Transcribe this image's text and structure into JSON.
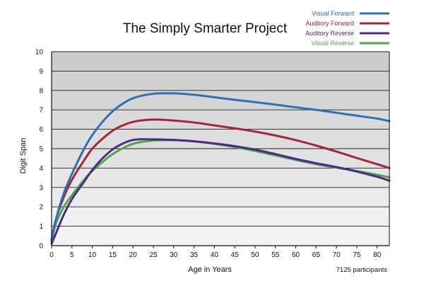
{
  "chart_data": {
    "type": "line",
    "title": "The Simply Smarter Project",
    "xlabel": "Age in Years",
    "ylabel": "Digit Span",
    "note": "7125 participants",
    "xlim": [
      0,
      83
    ],
    "ylim": [
      0,
      10
    ],
    "x_ticks": [
      0,
      5,
      10,
      15,
      20,
      25,
      30,
      35,
      40,
      45,
      50,
      55,
      60,
      65,
      70,
      75,
      80
    ],
    "y_ticks": [
      0,
      1,
      2,
      3,
      4,
      5,
      6,
      7,
      8,
      9,
      10
    ],
    "grid": true,
    "legend_position": "top-right",
    "series": [
      {
        "name": "Visual Forward",
        "color": "#2e6fb5",
        "x": [
          0,
          1,
          3,
          5,
          8,
          10,
          13,
          16,
          20,
          25,
          30,
          35,
          40,
          45,
          50,
          55,
          60,
          65,
          70,
          75,
          80,
          83
        ],
        "values": [
          0.2,
          1.3,
          2.7,
          3.7,
          5.0,
          5.7,
          6.5,
          7.1,
          7.6,
          7.83,
          7.85,
          7.78,
          7.65,
          7.52,
          7.4,
          7.27,
          7.13,
          7.0,
          6.85,
          6.7,
          6.55,
          6.42
        ]
      },
      {
        "name": "Auditory Forward",
        "color": "#a8243a",
        "x": [
          0,
          1,
          3,
          5,
          8,
          10,
          13,
          16,
          20,
          25,
          30,
          35,
          40,
          45,
          50,
          55,
          60,
          65,
          70,
          75,
          80,
          83
        ],
        "values": [
          0.3,
          1.3,
          2.5,
          3.4,
          4.4,
          5.0,
          5.6,
          6.05,
          6.38,
          6.5,
          6.45,
          6.35,
          6.2,
          6.05,
          5.88,
          5.68,
          5.44,
          5.16,
          4.85,
          4.52,
          4.2,
          4.0
        ]
      },
      {
        "name": "Auditory Reverse",
        "color": "#4b2a88",
        "x": [
          0,
          1,
          3,
          5,
          8,
          10,
          13,
          16,
          20,
          25,
          30,
          35,
          40,
          45,
          50,
          55,
          60,
          65,
          70,
          75,
          80,
          83
        ],
        "values": [
          0.1,
          0.6,
          1.6,
          2.4,
          3.3,
          3.9,
          4.6,
          5.1,
          5.45,
          5.48,
          5.45,
          5.38,
          5.27,
          5.13,
          4.95,
          4.72,
          4.47,
          4.25,
          4.05,
          3.82,
          3.55,
          3.35
        ]
      },
      {
        "name": "Visual Reverse",
        "color": "#4ea84a",
        "x": [
          0,
          1,
          3,
          5,
          8,
          10,
          13,
          16,
          20,
          25,
          30,
          35,
          40,
          45,
          50,
          55,
          60,
          65,
          70,
          75,
          80,
          83
        ],
        "values": [
          0.3,
          1.1,
          2.0,
          2.6,
          3.4,
          3.85,
          4.4,
          4.85,
          5.25,
          5.42,
          5.44,
          5.38,
          5.25,
          5.08,
          4.88,
          4.65,
          4.42,
          4.2,
          4.02,
          3.85,
          3.65,
          3.52
        ]
      }
    ]
  }
}
